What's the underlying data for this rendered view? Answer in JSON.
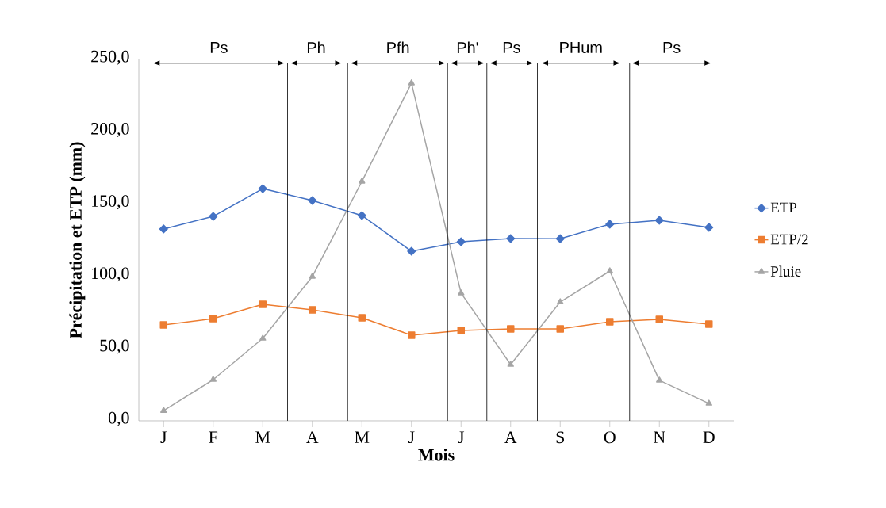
{
  "chart_data": {
    "type": "line",
    "xlabel": "Mois",
    "ylabel": "Précipitation et ETP (mm)",
    "categories": [
      "J",
      "F",
      "M",
      "A",
      "M",
      "J",
      "J",
      "A",
      "S",
      "O",
      "N",
      "D"
    ],
    "series": [
      {
        "name": "ETP",
        "color": "#4472c4",
        "marker": "diamond",
        "values": [
          132.7,
          141.4,
          160.6,
          152.4,
          142,
          117.3,
          123.9,
          126.1,
          126,
          136,
          138.7,
          133.8
        ]
      },
      {
        "name": "ETP/2",
        "color": "#ed7d31",
        "marker": "square",
        "values": [
          66.3,
          70.7,
          80.6,
          76.8,
          71.3,
          59.2,
          62.5,
          63.6,
          63.6,
          68.5,
          70.2,
          66.9
        ]
      },
      {
        "name": "Pluie",
        "color": "#a5a5a5",
        "marker": "triangle",
        "values": [
          7,
          28.5,
          57,
          99.8,
          165.6,
          233.6,
          88.3,
          38.9,
          82.2,
          103.6,
          28,
          12
        ]
      }
    ],
    "ylim": [
      0,
      250
    ],
    "yticks": [
      {
        "value": 0,
        "label": "0,0"
      },
      {
        "value": 50,
        "label": "50,0"
      },
      {
        "value": 100,
        "label": "100,0"
      },
      {
        "value": 150,
        "label": "150,0"
      },
      {
        "value": 200,
        "label": "200,0"
      },
      {
        "value": 250,
        "label": "250,0"
      }
    ],
    "grid": false,
    "legend": "right",
    "line_style": "solid",
    "annotations": [
      "Ps",
      "Ph",
      "Pfh",
      "Ph'",
      "Ps",
      "PHum",
      "Ps"
    ]
  }
}
